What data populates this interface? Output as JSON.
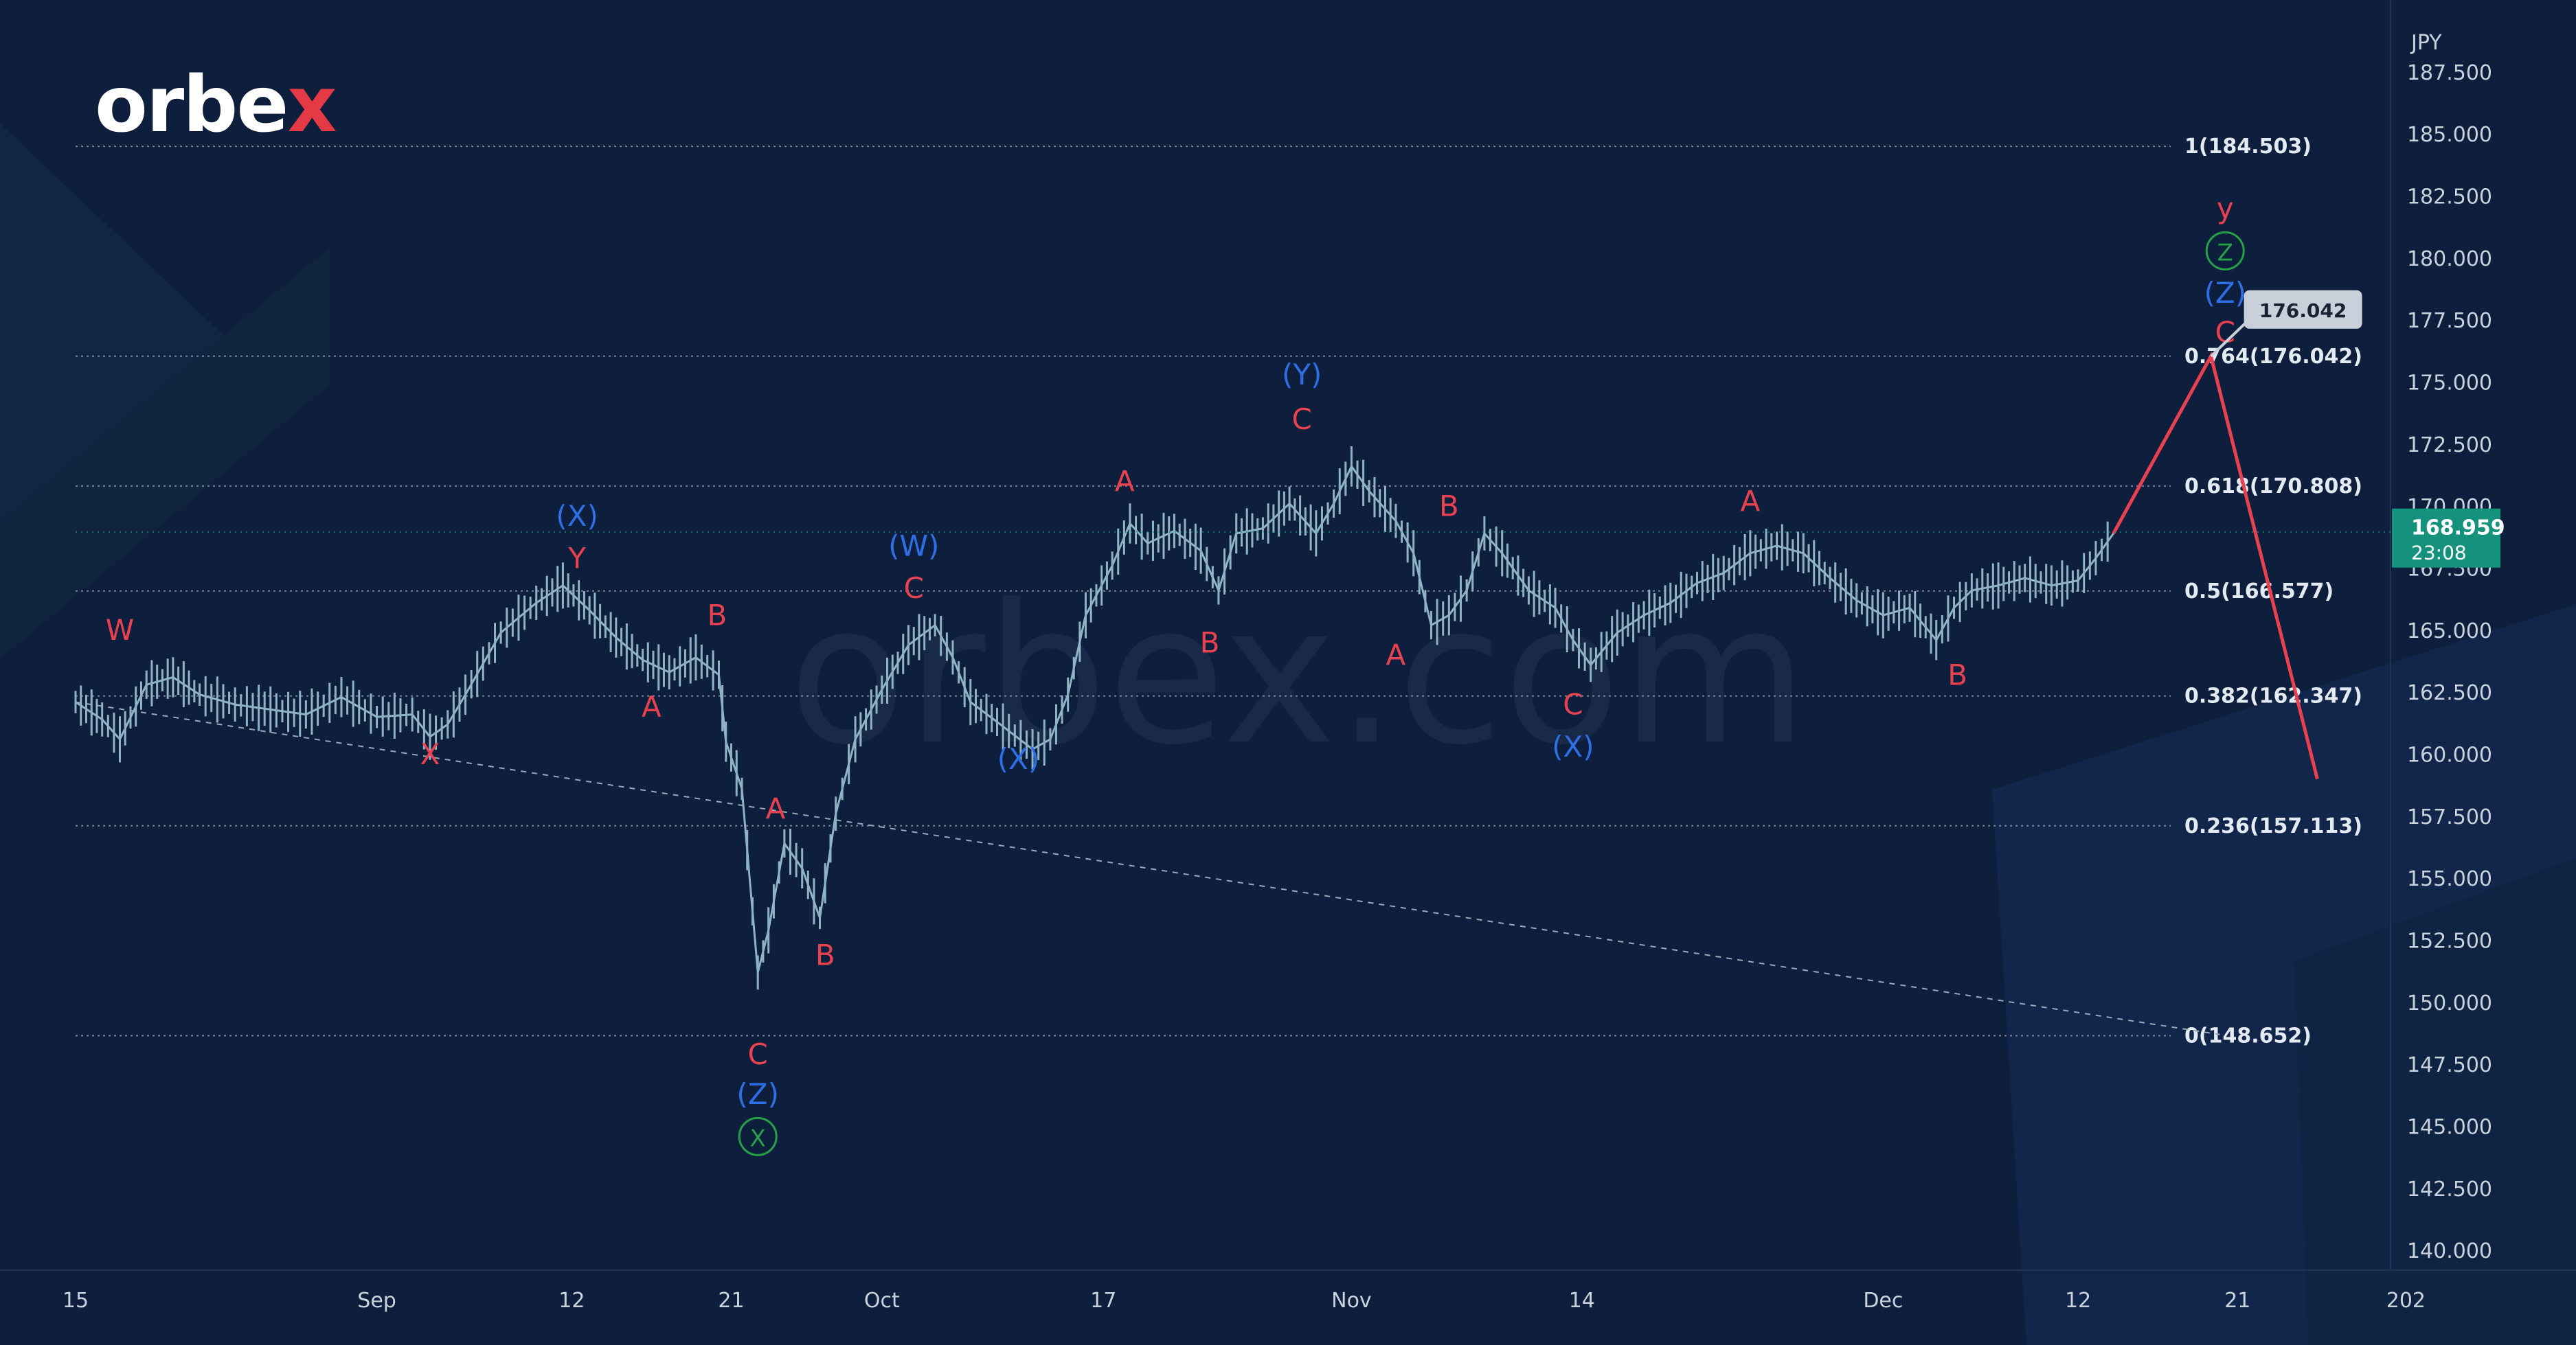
{
  "logo": {
    "text_before": "orbe",
    "text_x": "x"
  },
  "watermark": "orbex.com",
  "colors": {
    "background": "#0d1f3c",
    "candle": "#8fb3c4",
    "grid_line": "#9aa8b8",
    "red_label": "#e8414f",
    "blue_label": "#2f6fe6",
    "green_label": "#27a047",
    "projection": "#e8414f",
    "price_badge": "#14927e"
  },
  "chart_data": {
    "type": "line",
    "y_unit": "JPY",
    "ylim": [
      139.2,
      190.4
    ],
    "x_range_days": [
      0,
      128.5
    ],
    "y_ticks": [
      "187.500",
      "185.000",
      "182.500",
      "180.000",
      "177.500",
      "175.000",
      "172.500",
      "170.000",
      "167.500",
      "165.000",
      "162.500",
      "160.000",
      "157.500",
      "155.000",
      "152.500",
      "150.000",
      "147.500",
      "145.000",
      "142.500",
      "140.000"
    ],
    "y_tick_values": [
      187.5,
      185,
      182.5,
      180,
      177.5,
      175,
      172.5,
      170,
      167.5,
      165,
      162.5,
      160,
      157.5,
      155,
      152.5,
      150,
      147.5,
      145,
      142.5,
      140
    ],
    "x_ticks": [
      {
        "label": "15",
        "day": 0
      },
      {
        "label": "Sep",
        "day": 17
      },
      {
        "label": "12",
        "day": 28
      },
      {
        "label": "21",
        "day": 37
      },
      {
        "label": "Oct",
        "day": 45.5
      },
      {
        "label": "17",
        "day": 58
      },
      {
        "label": "Nov",
        "day": 72
      },
      {
        "label": "14",
        "day": 85
      },
      {
        "label": "Dec",
        "day": 102
      },
      {
        "label": "12",
        "day": 113
      },
      {
        "label": "21",
        "day": 122
      },
      {
        "label": "202",
        "day": 131.5
      }
    ],
    "fib_levels": [
      {
        "label": "1(184.503)",
        "value": 184.503
      },
      {
        "label": "0.764(176.042)",
        "value": 176.042
      },
      {
        "label": "0.618(170.808)",
        "value": 170.808
      },
      {
        "label": "0.5(166.577)",
        "value": 166.577
      },
      {
        "label": "0.382(162.347)",
        "value": 162.347
      },
      {
        "label": "0.236(157.113)",
        "value": 157.113
      },
      {
        "label": "0(148.652)",
        "value": 148.652
      }
    ],
    "price_series": {
      "name": "",
      "points": [
        [
          0,
          162.1
        ],
        [
          1.5,
          161.4
        ],
        [
          2.5,
          160.6
        ],
        [
          4,
          162.8
        ],
        [
          5.5,
          163.1
        ],
        [
          7,
          162.4
        ],
        [
          9,
          162.0
        ],
        [
          11,
          161.8
        ],
        [
          13,
          161.6
        ],
        [
          15,
          162.3
        ],
        [
          17,
          161.5
        ],
        [
          19,
          161.6
        ],
        [
          20,
          160.7
        ],
        [
          21,
          161.2
        ],
        [
          22,
          162.4
        ],
        [
          24,
          164.9
        ],
        [
          26,
          166.1
        ],
        [
          27.5,
          166.8
        ],
        [
          29,
          165.8
        ],
        [
          30.5,
          164.7
        ],
        [
          32,
          163.8
        ],
        [
          33.5,
          163.3
        ],
        [
          35,
          163.9
        ],
        [
          36.3,
          163.2
        ],
        [
          36.7,
          160.5
        ],
        [
          37.6,
          158.6
        ],
        [
          38.5,
          151.2
        ],
        [
          39.1,
          152.9
        ],
        [
          40,
          156.4
        ],
        [
          41,
          155.4
        ],
        [
          42,
          153.4
        ],
        [
          42.9,
          157.6
        ],
        [
          44,
          160.6
        ],
        [
          45.5,
          162.6
        ],
        [
          47,
          164.4
        ],
        [
          48.5,
          165.2
        ],
        [
          49.5,
          163.9
        ],
        [
          50.5,
          162.1
        ],
        [
          52,
          161.3
        ],
        [
          54,
          160.2
        ],
        [
          55,
          160.6
        ],
        [
          56,
          162.4
        ],
        [
          57,
          165.6
        ],
        [
          58.5,
          167.6
        ],
        [
          59.5,
          169.3
        ],
        [
          60.5,
          168.5
        ],
        [
          62,
          169.0
        ],
        [
          63.5,
          168.2
        ],
        [
          64.5,
          166.6
        ],
        [
          65.5,
          168.9
        ],
        [
          67,
          169.1
        ],
        [
          68.5,
          170.1
        ],
        [
          70,
          168.9
        ],
        [
          71,
          170.1
        ],
        [
          72,
          171.6
        ],
        [
          73,
          170.6
        ],
        [
          74.5,
          169.4
        ],
        [
          75.5,
          168.1
        ],
        [
          76.5,
          165.2
        ],
        [
          77.5,
          165.6
        ],
        [
          78.5,
          166.6
        ],
        [
          79.5,
          168.9
        ],
        [
          80.5,
          168.1
        ],
        [
          82,
          166.6
        ],
        [
          83.5,
          165.9
        ],
        [
          84.5,
          164.6
        ],
        [
          85.5,
          163.6
        ],
        [
          87,
          164.9
        ],
        [
          88.5,
          165.6
        ],
        [
          90,
          166.1
        ],
        [
          91.5,
          166.9
        ],
        [
          93,
          167.3
        ],
        [
          94.5,
          168.1
        ],
        [
          96,
          168.4
        ],
        [
          97.5,
          168.1
        ],
        [
          99,
          167.1
        ],
        [
          100.5,
          166.2
        ],
        [
          102,
          165.6
        ],
        [
          103.5,
          165.9
        ],
        [
          105,
          164.6
        ],
        [
          106,
          165.9
        ],
        [
          107,
          166.6
        ],
        [
          108.5,
          166.8
        ],
        [
          110,
          167.1
        ],
        [
          111.5,
          166.8
        ],
        [
          113,
          167.0
        ],
        [
          114,
          167.9
        ],
        [
          115,
          168.9
        ]
      ]
    },
    "projection": {
      "points": [
        [
          115,
          168.9
        ],
        [
          120.5,
          176.042
        ],
        [
          126.5,
          159.0
        ]
      ]
    },
    "trendline": {
      "from": [
        0,
        162.1
      ],
      "to": [
        121,
        148.7
      ]
    },
    "wave_labels": [
      {
        "text": "W",
        "day": 2.5,
        "value": 164.6,
        "color": "red",
        "circled": false
      },
      {
        "text": "X",
        "day": 20,
        "value": 159.6,
        "color": "red",
        "circled": false
      },
      {
        "text": "(X)",
        "day": 28.3,
        "value": 169.2,
        "color": "blue",
        "circled": false
      },
      {
        "text": "Y",
        "day": 28.3,
        "value": 167.5,
        "color": "red",
        "circled": false
      },
      {
        "text": "A",
        "day": 32.5,
        "value": 161.5,
        "color": "red",
        "circled": false
      },
      {
        "text": "B",
        "day": 36.2,
        "value": 165.2,
        "color": "red",
        "circled": false
      },
      {
        "text": "A",
        "day": 39.5,
        "value": 157.4,
        "color": "red",
        "circled": false
      },
      {
        "text": "B",
        "day": 42.3,
        "value": 151.5,
        "color": "red",
        "circled": false
      },
      {
        "text": "C",
        "day": 38.5,
        "value": 147.5,
        "color": "red",
        "circled": false
      },
      {
        "text": "(Z)",
        "day": 38.5,
        "value": 145.9,
        "color": "blue",
        "circled": false
      },
      {
        "text": "X",
        "day": 38.5,
        "value": 144.2,
        "color": "green",
        "circled": true
      },
      {
        "text": "(W)",
        "day": 47.3,
        "value": 168.0,
        "color": "blue",
        "circled": false
      },
      {
        "text": "C",
        "day": 47.3,
        "value": 166.3,
        "color": "red",
        "circled": false
      },
      {
        "text": "(X)",
        "day": 53.2,
        "value": 159.4,
        "color": "blue",
        "circled": false
      },
      {
        "text": "A",
        "day": 59.2,
        "value": 170.6,
        "color": "red",
        "circled": false
      },
      {
        "text": "B",
        "day": 64.0,
        "value": 164.1,
        "color": "red",
        "circled": false
      },
      {
        "text": "(Y)",
        "day": 69.2,
        "value": 174.9,
        "color": "blue",
        "circled": false
      },
      {
        "text": "C",
        "day": 69.2,
        "value": 173.1,
        "color": "red",
        "circled": false
      },
      {
        "text": "A",
        "day": 74.5,
        "value": 163.6,
        "color": "red",
        "circled": false
      },
      {
        "text": "B",
        "day": 77.5,
        "value": 169.6,
        "color": "red",
        "circled": false
      },
      {
        "text": "C",
        "day": 84.5,
        "value": 161.6,
        "color": "red",
        "circled": false
      },
      {
        "text": "(X)",
        "day": 84.5,
        "value": 159.9,
        "color": "blue",
        "circled": false
      },
      {
        "text": "A",
        "day": 94.5,
        "value": 169.8,
        "color": "red",
        "circled": false
      },
      {
        "text": "B",
        "day": 106.2,
        "value": 162.8,
        "color": "red",
        "circled": false
      },
      {
        "text": "y",
        "day": 121.3,
        "value": 181.6,
        "color": "red",
        "circled": false
      },
      {
        "text": "Z",
        "day": 121.3,
        "value": 179.9,
        "color": "green",
        "circled": true
      },
      {
        "text": "(Z)",
        "day": 121.3,
        "value": 178.2,
        "color": "blue",
        "circled": false
      },
      {
        "text": "C",
        "day": 121.3,
        "value": 176.6,
        "color": "red",
        "circled": false
      }
    ],
    "target_callout": "176.042",
    "current_price": {
      "value": 168.959,
      "label": "168.959",
      "timer": "23:08"
    }
  }
}
